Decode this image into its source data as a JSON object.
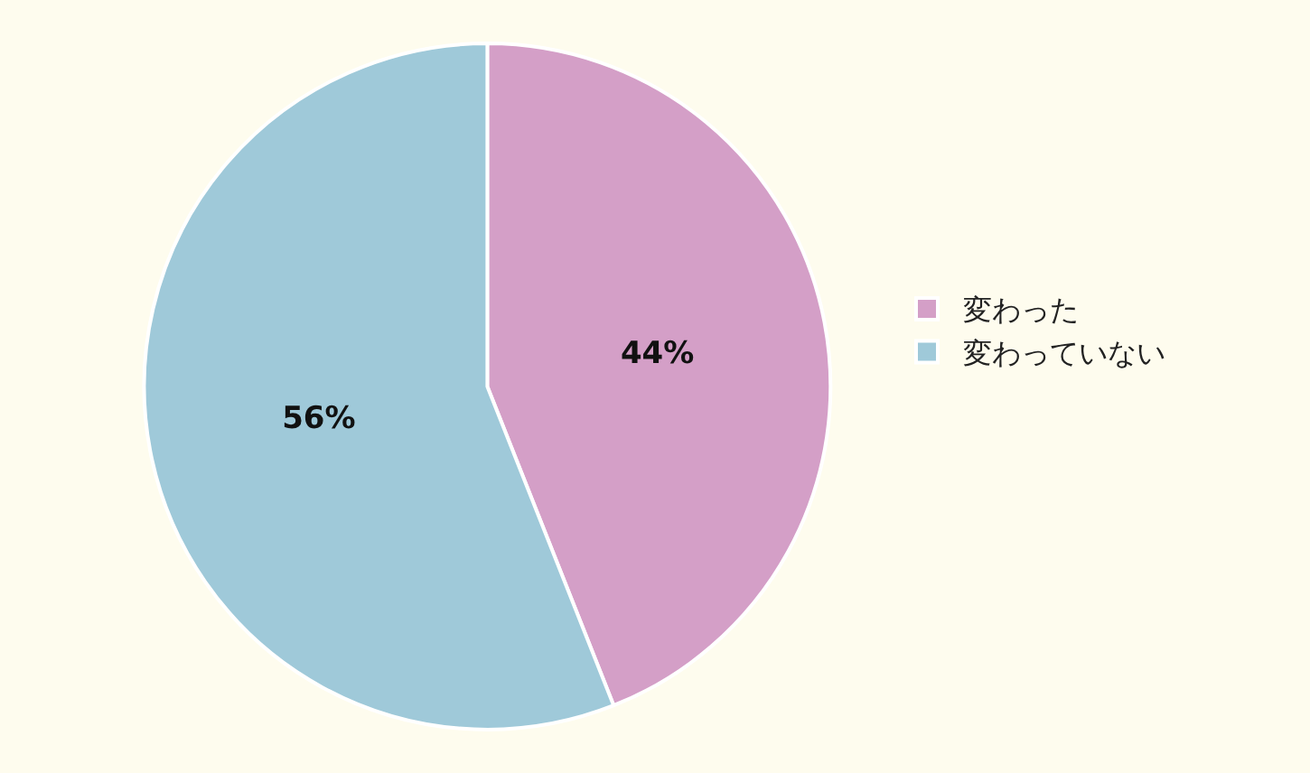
{
  "chart_data": {
    "type": "pie",
    "categories": [
      "変わった",
      "変わっていない"
    ],
    "values": [
      44,
      56
    ],
    "colors": [
      "#d49fc7",
      "#9fc9d9"
    ],
    "value_labels": [
      "44%",
      "56%"
    ],
    "legend": "right"
  }
}
